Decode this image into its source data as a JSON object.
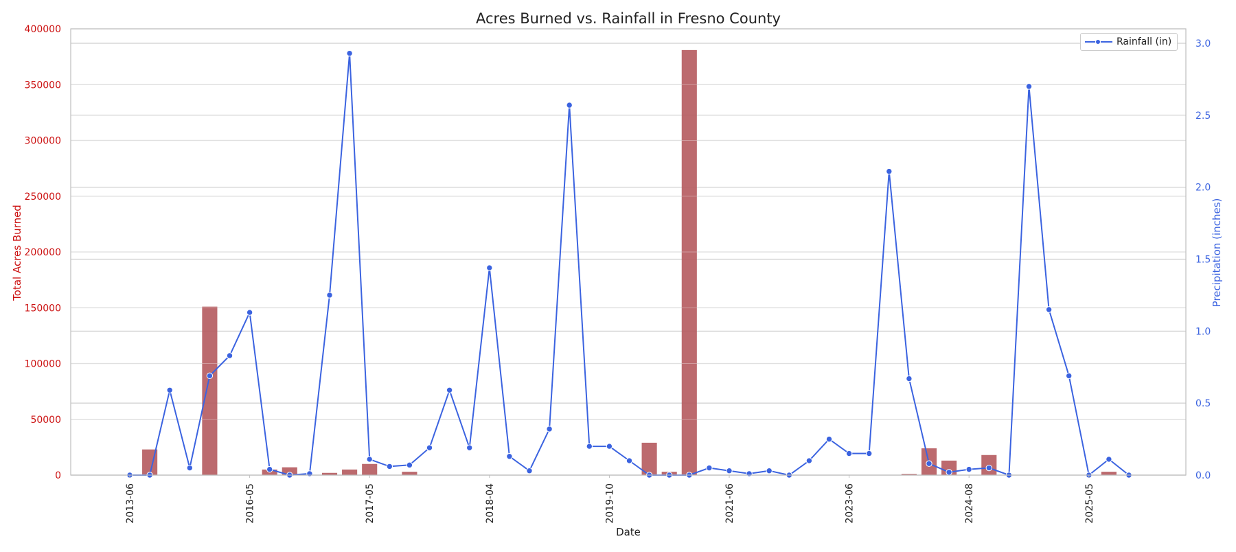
{
  "chart_data": {
    "type": "bar+line",
    "title": "Acres Burned vs. Rainfall in Fresno County",
    "xlabel": "Date",
    "ylabel_left": "Total Acres Burned",
    "ylabel_right": "Precipitation (inches)",
    "ylim_left": [
      0,
      400000
    ],
    "ylim_right": [
      0,
      3.1
    ],
    "yticks_left": [
      0,
      50000,
      100000,
      150000,
      200000,
      250000,
      300000,
      350000,
      400000
    ],
    "yticks_right": [
      "0.0",
      "0.5",
      "1.0",
      "1.5",
      "2.0",
      "2.5",
      "3.0"
    ],
    "x_tick_labels": [
      {
        "index": 0,
        "label": "2013-06"
      },
      {
        "index": 6,
        "label": "2016-05"
      },
      {
        "index": 12,
        "label": "2017-05"
      },
      {
        "index": 18,
        "label": "2018-04"
      },
      {
        "index": 24,
        "label": "2019-10"
      },
      {
        "index": 30,
        "label": "2021-06"
      },
      {
        "index": 36,
        "label": "2023-06"
      },
      {
        "index": 42,
        "label": "2024-08"
      },
      {
        "index": 48,
        "label": "2025-05"
      }
    ],
    "series": [
      {
        "name": "",
        "kind": "bar",
        "values": [
          0,
          23000,
          0,
          0,
          151000,
          0,
          0,
          5000,
          7000,
          0,
          2000,
          5000,
          10000,
          0,
          3000,
          0,
          0,
          0,
          0,
          0,
          0,
          0,
          0,
          0,
          0,
          0,
          29000,
          3000,
          381000,
          0,
          0,
          0,
          0,
          0,
          0,
          0,
          0,
          0,
          0,
          1000,
          24000,
          13000,
          0,
          18000,
          0,
          0,
          0,
          0,
          0,
          3000,
          0
        ]
      },
      {
        "name": "Rainfall (in)",
        "kind": "line",
        "values": [
          0.0,
          0.0,
          0.59,
          0.05,
          0.69,
          0.83,
          1.13,
          0.04,
          0.0,
          0.01,
          1.25,
          2.93,
          0.11,
          0.06,
          0.07,
          0.19,
          0.59,
          0.19,
          1.44,
          0.13,
          0.03,
          0.32,
          2.57,
          0.2,
          0.2,
          0.1,
          0.0,
          0.0,
          0.0,
          0.05,
          0.03,
          0.01,
          0.03,
          0.0,
          0.1,
          0.25,
          0.15,
          0.15,
          2.11,
          0.67,
          0.08,
          0.02,
          0.04,
          0.05,
          0.0,
          2.7,
          1.15,
          0.69,
          0.0,
          0.11,
          0.0
        ]
      }
    ],
    "legend": {
      "position": "top-right",
      "label": "Rainfall (in)"
    },
    "grid": true,
    "colors": {
      "bar": "#b55a5e",
      "line": "#3b63e0",
      "left_axis": "#cc1111",
      "right_axis": "#3b63e0"
    }
  }
}
